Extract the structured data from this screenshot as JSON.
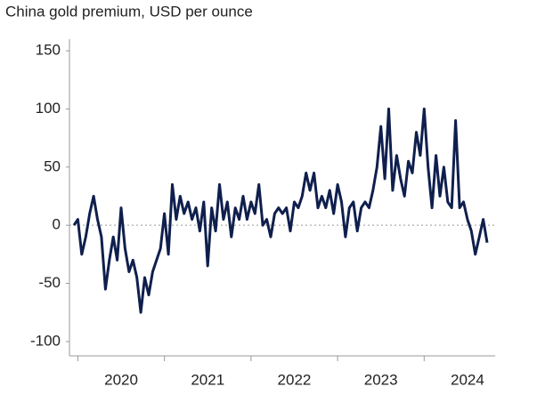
{
  "chart_data": {
    "type": "line",
    "title": "China gold premium, USD per ounce",
    "categories": [
      null,
      null,
      null,
      null,
      null,
      null,
      null,
      null,
      null,
      null,
      null,
      null,
      "2020",
      null,
      null,
      null,
      null,
      null,
      null,
      null,
      null,
      null,
      null,
      null,
      null,
      null,
      null,
      null,
      null,
      null,
      null,
      null,
      null,
      null,
      "2021",
      null,
      null,
      null,
      null,
      null,
      null,
      null,
      null,
      null,
      null,
      null,
      null,
      null,
      null,
      null,
      null,
      null,
      null,
      null,
      null,
      null,
      "2022",
      null,
      null,
      null,
      null,
      null,
      null,
      null,
      null,
      null,
      null,
      null,
      null,
      null,
      null,
      null,
      null,
      null,
      null,
      null,
      null,
      null,
      "2023",
      null,
      null,
      null,
      null,
      null,
      null,
      null,
      null,
      null,
      null,
      null,
      null,
      null,
      null,
      null,
      null,
      null,
      null,
      null,
      null,
      null,
      "2024",
      null,
      null,
      null,
      null,
      null
    ],
    "values": [
      0,
      5,
      -25,
      -10,
      10,
      25,
      5,
      -10,
      -55,
      -30,
      -10,
      -30,
      15,
      -20,
      -40,
      -30,
      -45,
      -75,
      -45,
      -60,
      -40,
      -30,
      -20,
      10,
      -25,
      35,
      5,
      25,
      10,
      20,
      5,
      15,
      -5,
      20,
      -35,
      15,
      -5,
      35,
      5,
      20,
      -10,
      15,
      5,
      25,
      5,
      20,
      10,
      35,
      0,
      5,
      -10,
      10,
      15,
      10,
      15,
      -5,
      20,
      15,
      25,
      45,
      30,
      45,
      15,
      25,
      15,
      30,
      10,
      35,
      20,
      -10,
      15,
      20,
      -5,
      15,
      20,
      15,
      30,
      50,
      85,
      40,
      100,
      30,
      60,
      40,
      25,
      55,
      45,
      80,
      60,
      100,
      50,
      15,
      60,
      25,
      50,
      20,
      15,
      90,
      15,
      20,
      5,
      -5,
      -25,
      -10,
      5,
      -15
    ],
    "color": "#0f1f4d",
    "ylim": [
      -110,
      160
    ],
    "yticks": [
      -100,
      -50,
      0,
      50,
      100,
      150
    ]
  }
}
